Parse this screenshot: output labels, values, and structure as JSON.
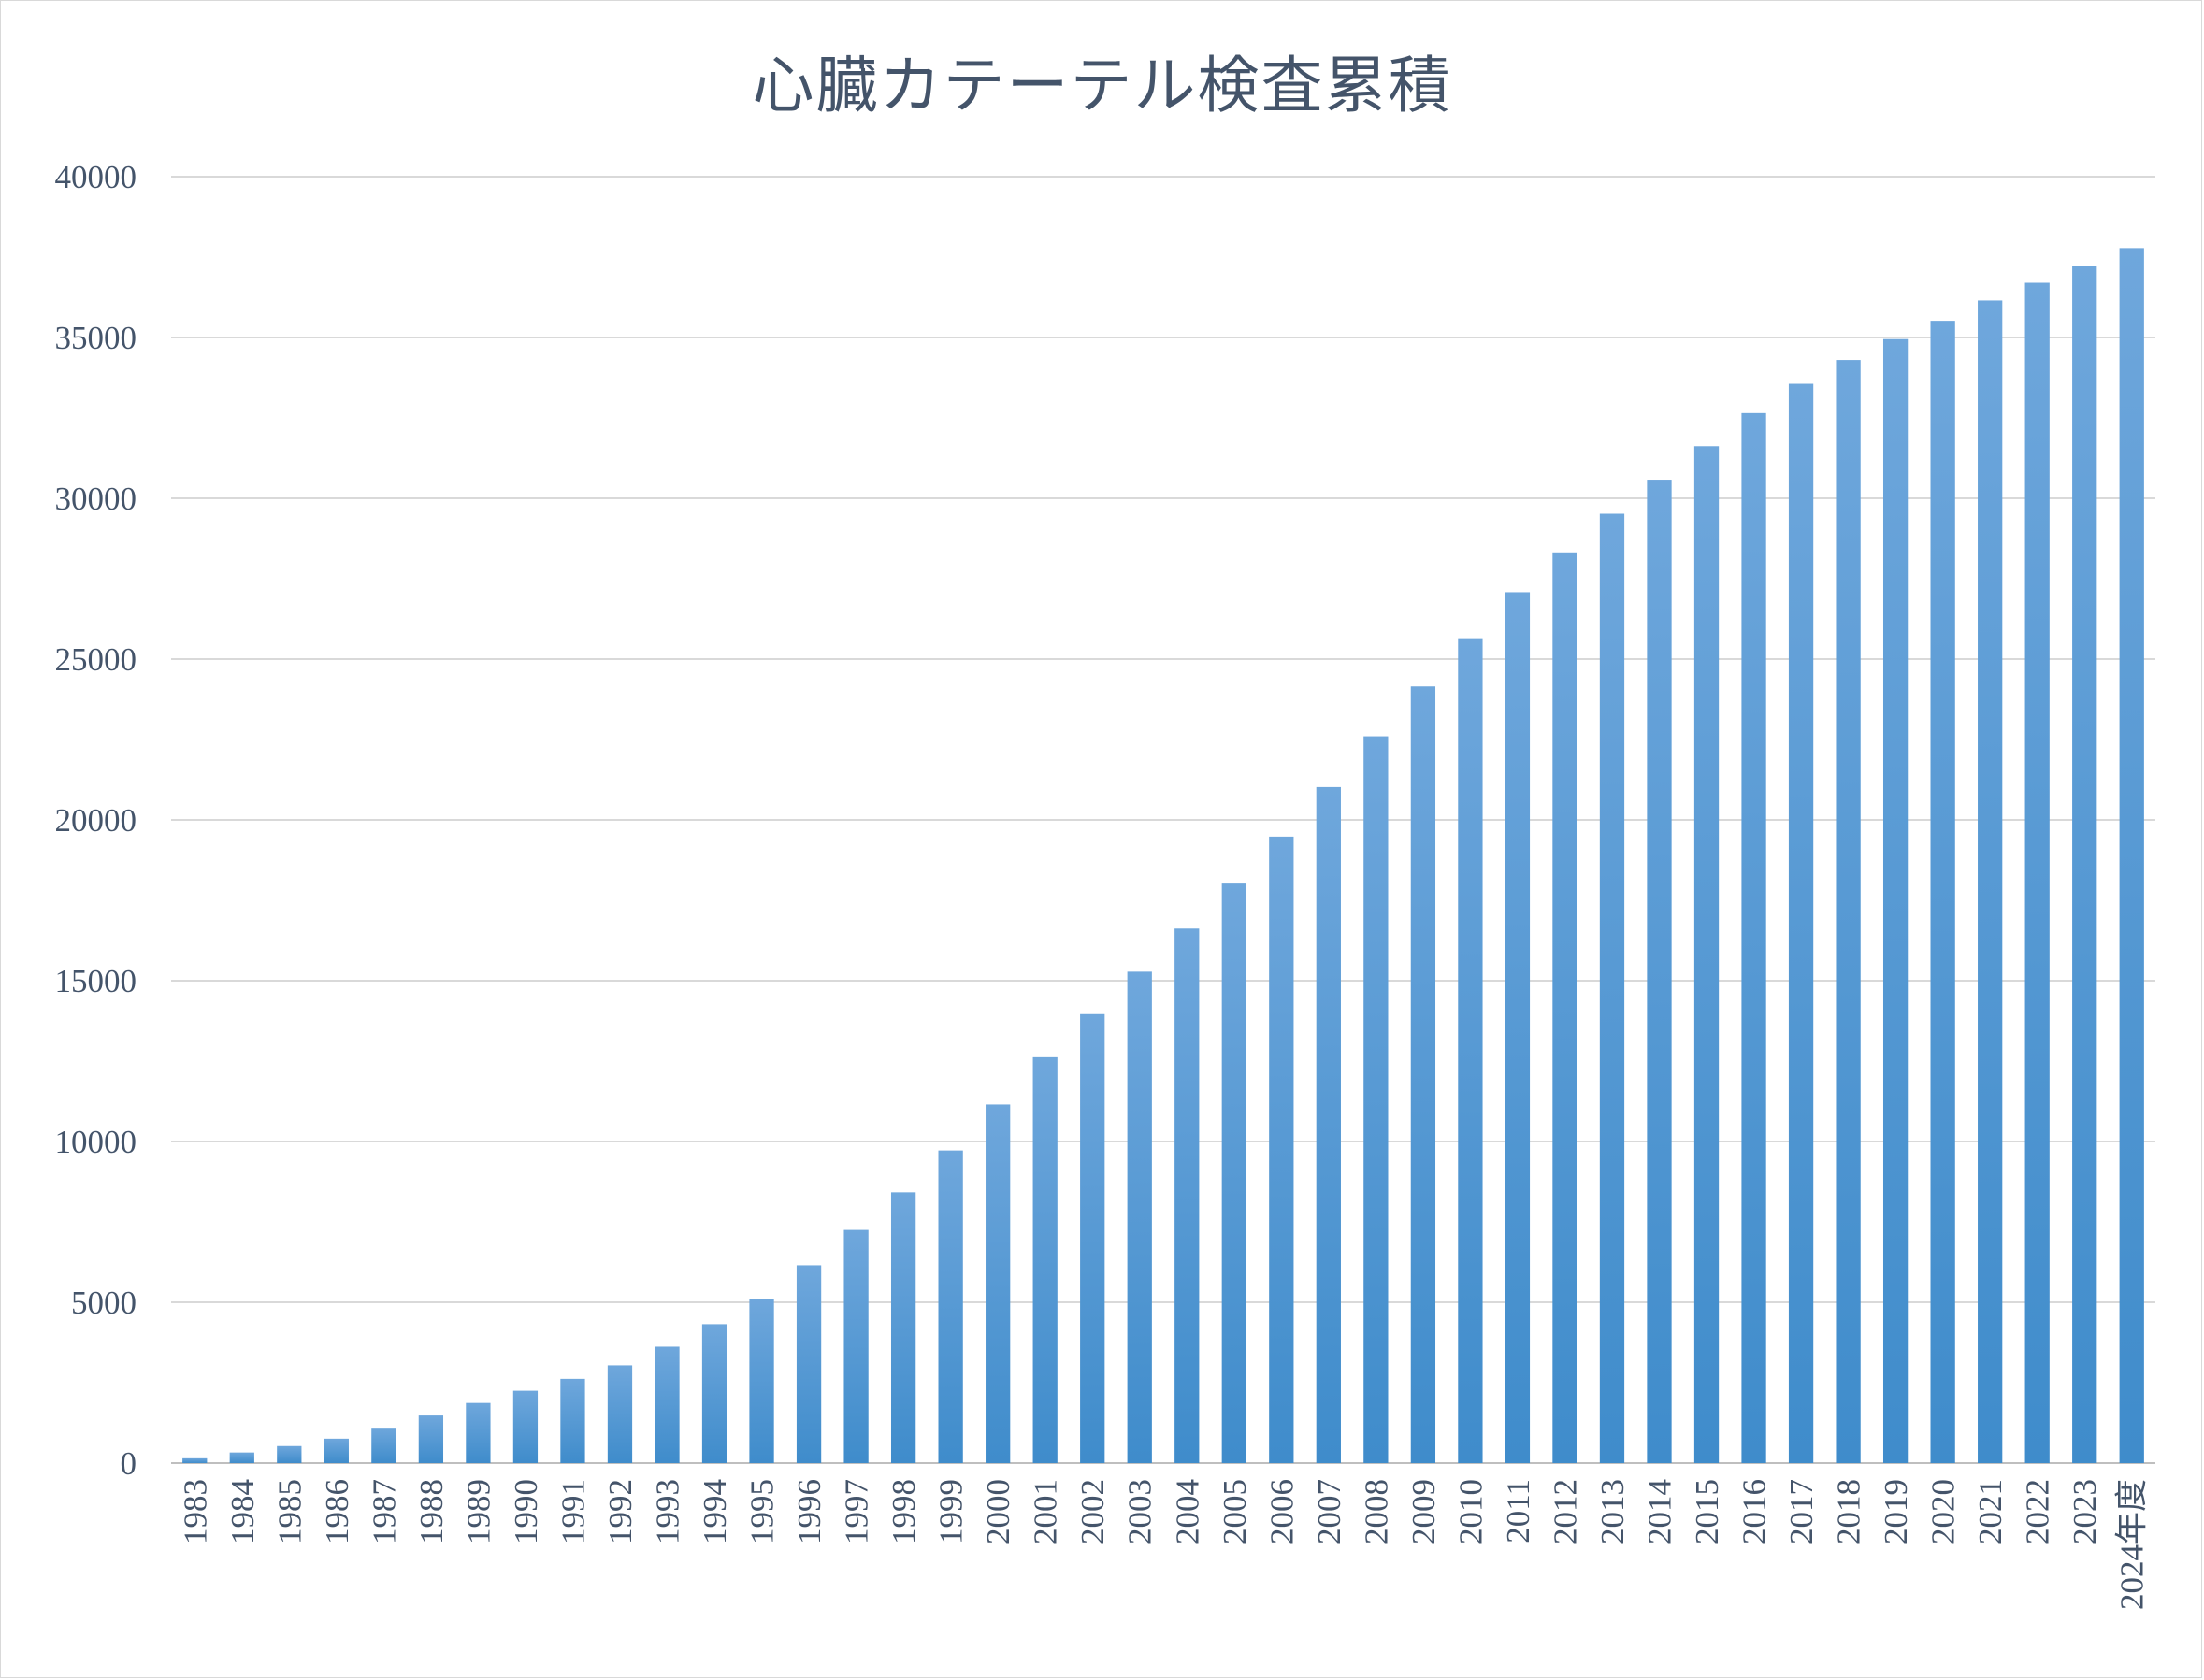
{
  "chart_data": {
    "type": "bar",
    "title": "心臓カテーテル検査累積",
    "xlabel": "",
    "ylabel": "",
    "ylim": [
      0,
      40000
    ],
    "yticks": [
      0,
      5000,
      10000,
      15000,
      20000,
      25000,
      30000,
      35000,
      40000
    ],
    "grid": true,
    "legend": "none",
    "bar_color_top": "#6fa7dc",
    "bar_color_bottom": "#3f8ccb",
    "categories": [
      "1983",
      "1984",
      "1985",
      "1986",
      "1987",
      "1988",
      "1989",
      "1990",
      "1991",
      "1992",
      "1993",
      "1994",
      "1995",
      "1996",
      "1997",
      "1998",
      "1999",
      "2000",
      "2001",
      "2002",
      "2003",
      "2004",
      "2005",
      "2006",
      "2007",
      "2008",
      "2009",
      "2010",
      "2011",
      "2012",
      "2013",
      "2014",
      "2015",
      "2016",
      "2017",
      "2018",
      "2019",
      "2020",
      "2021",
      "2022",
      "2023",
      "2024年度"
    ],
    "values": [
      150,
      330,
      530,
      760,
      1100,
      1480,
      1870,
      2250,
      2620,
      3040,
      3620,
      4320,
      5100,
      6150,
      7250,
      8420,
      9720,
      11150,
      12620,
      13960,
      15280,
      16620,
      18020,
      19480,
      21020,
      22600,
      24150,
      25650,
      27080,
      28320,
      29520,
      30580,
      31620,
      32650,
      33560,
      34300,
      34950,
      35520,
      36150,
      36700,
      37220,
      37780
    ]
  }
}
